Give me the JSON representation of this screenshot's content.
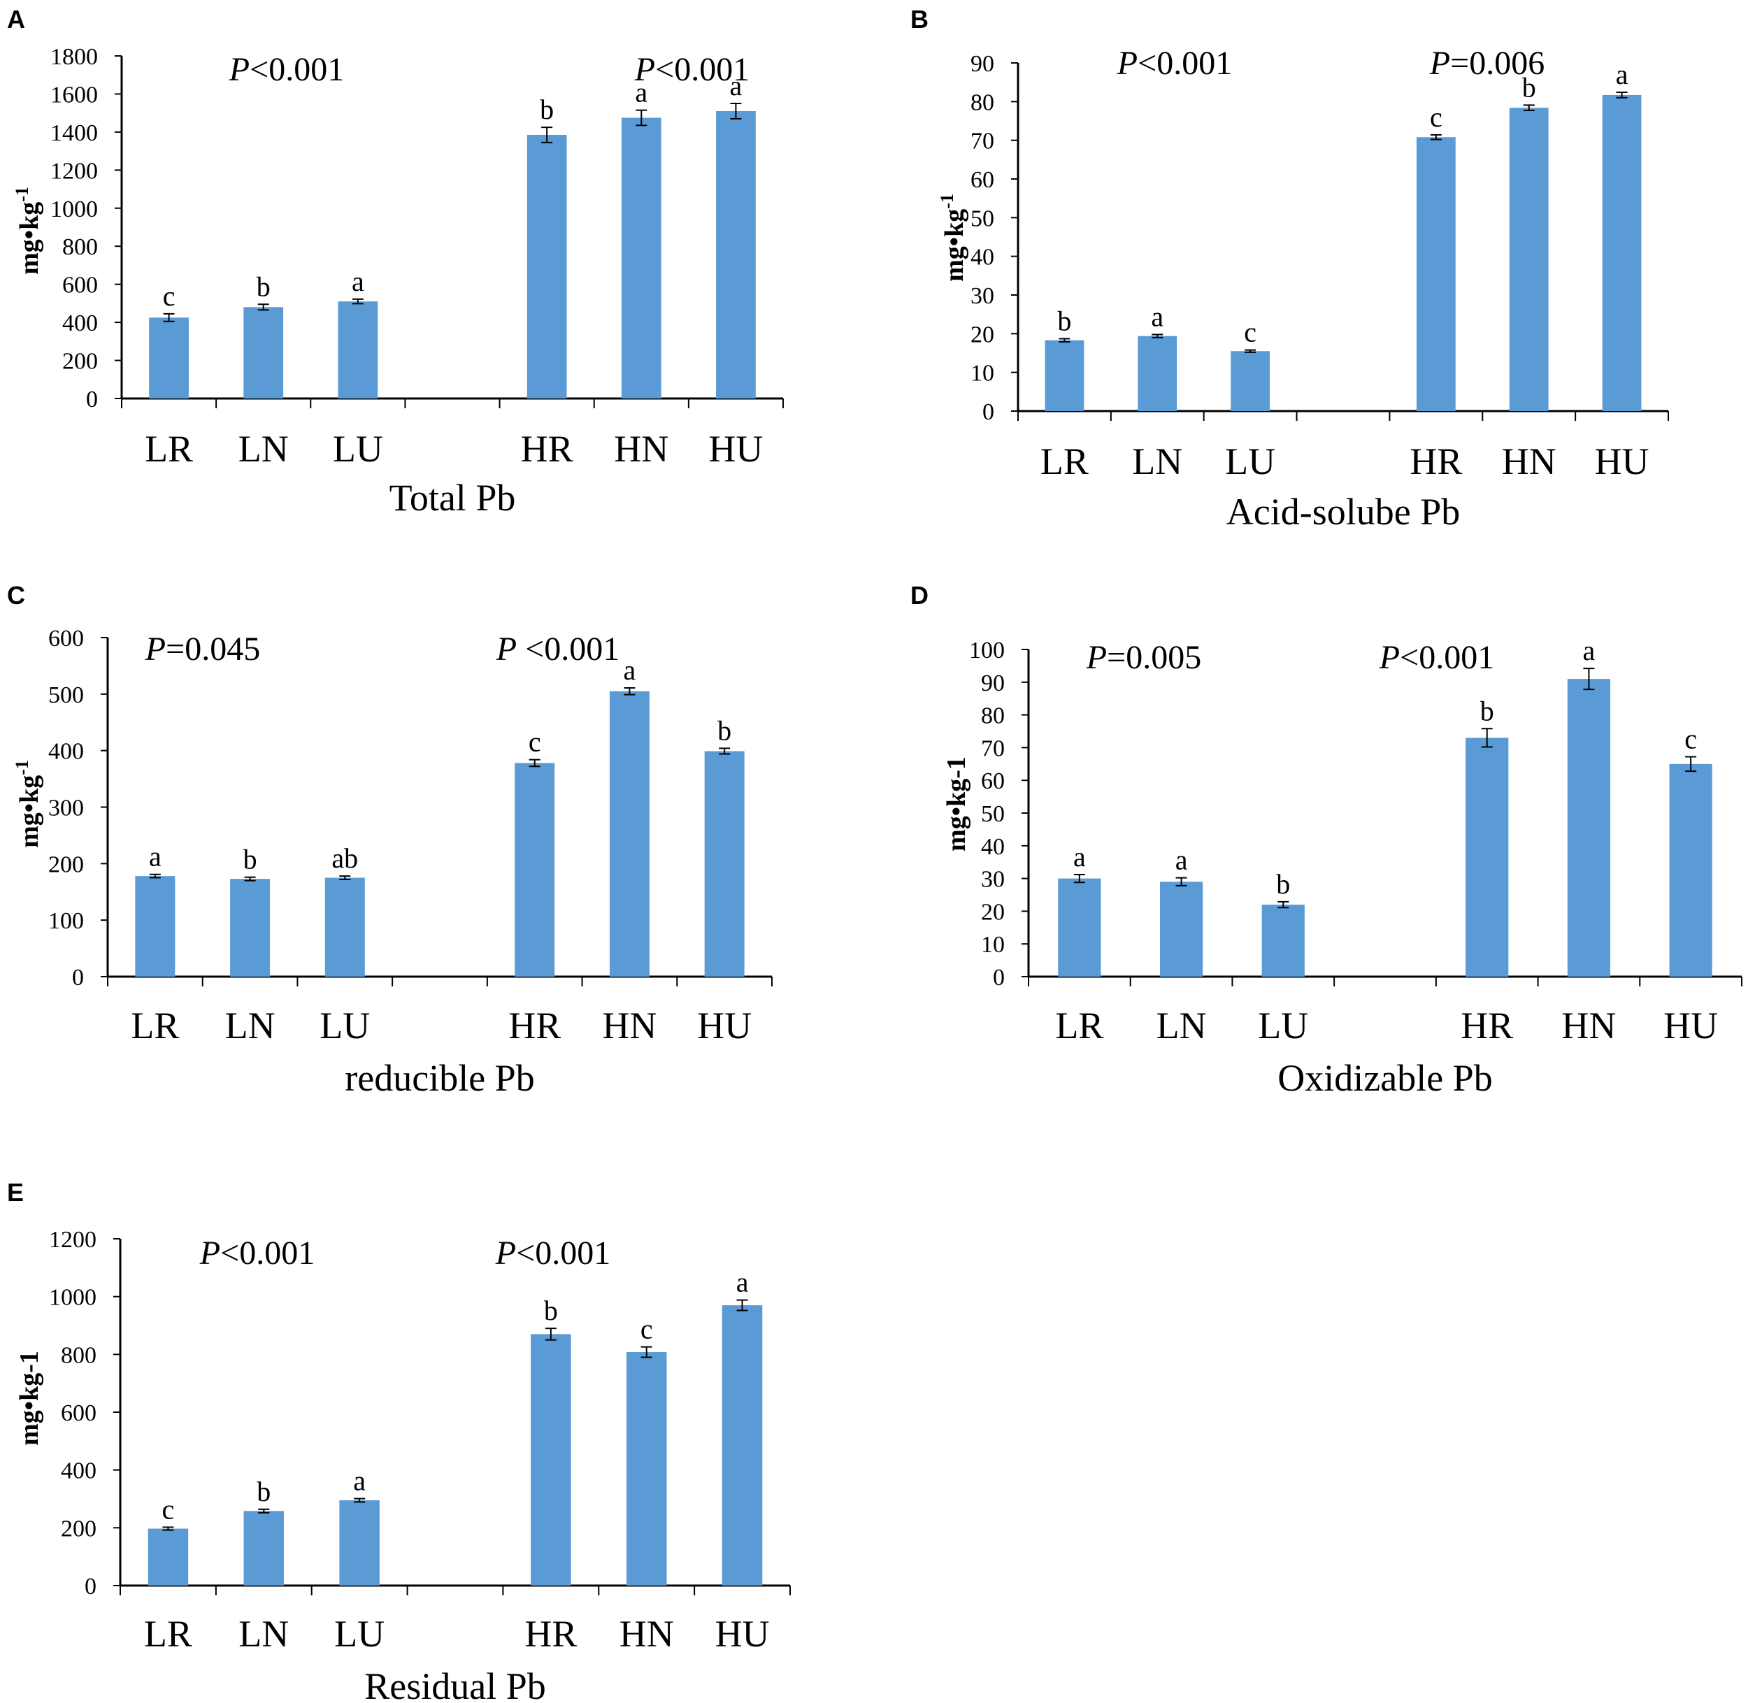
{
  "colors": {
    "bar": "#5B9BD5",
    "axis": "#000000"
  },
  "chart_data": [
    {
      "panel": "A",
      "type": "bar",
      "title": "",
      "xlabel": "Total Pb",
      "ylabel": "mg•kg",
      "ylabel_sup": "-1",
      "ylim": [
        0,
        1800
      ],
      "yticks": [
        0,
        200,
        400,
        600,
        800,
        1000,
        1200,
        1400,
        1600,
        1800
      ],
      "categories": [
        "LR",
        "LN",
        "LU",
        "HR",
        "HN",
        "HU"
      ],
      "values": [
        425,
        480,
        510,
        1385,
        1475,
        1510
      ],
      "errors": [
        20,
        15,
        12,
        40,
        40,
        40
      ],
      "letters": [
        "c",
        "b",
        "a",
        "b",
        "a",
        "a"
      ],
      "p_values": [
        "P<0.001",
        "P<0.001"
      ]
    },
    {
      "panel": "B",
      "type": "bar",
      "title": "",
      "xlabel": "Acid-solube Pb",
      "ylabel": "mg•kg",
      "ylabel_sup": "-1",
      "ylim": [
        0,
        90
      ],
      "yticks": [
        0,
        10,
        20,
        30,
        40,
        50,
        60,
        70,
        80,
        90
      ],
      "categories": [
        "LR",
        "LN",
        "LU",
        "HR",
        "HN",
        "HU"
      ],
      "values": [
        18.3,
        19.4,
        15.5,
        70.8,
        78.4,
        81.7
      ],
      "errors": [
        0.4,
        0.4,
        0.3,
        0.6,
        0.7,
        0.7
      ],
      "letters": [
        "b",
        "a",
        "c",
        "c",
        "b",
        "a"
      ],
      "p_values": [
        "P<0.001",
        "P=0.006"
      ]
    },
    {
      "panel": "C",
      "type": "bar",
      "title": "",
      "xlabel": "reducible Pb",
      "ylabel": "mg•kg",
      "ylabel_sup": "-1",
      "ylim": [
        0,
        600
      ],
      "yticks": [
        0,
        100,
        200,
        300,
        400,
        500,
        600
      ],
      "categories": [
        "LR",
        "LN",
        "LU",
        "HR",
        "HN",
        "HU"
      ],
      "values": [
        178,
        173,
        175,
        378,
        505,
        399
      ],
      "errors": [
        3,
        3,
        3,
        6,
        6,
        5
      ],
      "letters": [
        "a",
        "b",
        "ab",
        "c",
        "a",
        "b"
      ],
      "p_values": [
        "P=0.045",
        "P <0.001"
      ]
    },
    {
      "panel": "D",
      "type": "bar",
      "title": "",
      "xlabel": "Oxidizable Pb",
      "ylabel": "mg•kg-1",
      "ylabel_sup": "",
      "ylim": [
        0,
        100
      ],
      "yticks": [
        0,
        10,
        20,
        30,
        40,
        50,
        60,
        70,
        80,
        90,
        100
      ],
      "categories": [
        "LR",
        "LN",
        "LU",
        "HR",
        "HN",
        "HU"
      ],
      "values": [
        30,
        29,
        22,
        73,
        91,
        65
      ],
      "errors": [
        1.2,
        1.2,
        0.9,
        2.8,
        3.2,
        2.2
      ],
      "letters": [
        "a",
        "a",
        "b",
        "b",
        "a",
        "c"
      ],
      "p_values": [
        "P=0.005",
        "P<0.001"
      ]
    },
    {
      "panel": "E",
      "type": "bar",
      "title": "",
      "xlabel": "Residual Pb",
      "ylabel": "mg•kg-1",
      "ylabel_sup": "",
      "ylim": [
        0,
        1200
      ],
      "yticks": [
        0,
        200,
        400,
        600,
        800,
        1000,
        1200
      ],
      "categories": [
        "LR",
        "LN",
        "LU",
        "HR",
        "HN",
        "HU"
      ],
      "values": [
        197,
        258,
        295,
        870,
        808,
        970
      ],
      "errors": [
        5,
        6,
        6,
        20,
        18,
        18
      ],
      "letters": [
        "c",
        "b",
        "a",
        "b",
        "c",
        "a"
      ],
      "p_values": [
        "P<0.001",
        "P<0.001"
      ]
    }
  ]
}
